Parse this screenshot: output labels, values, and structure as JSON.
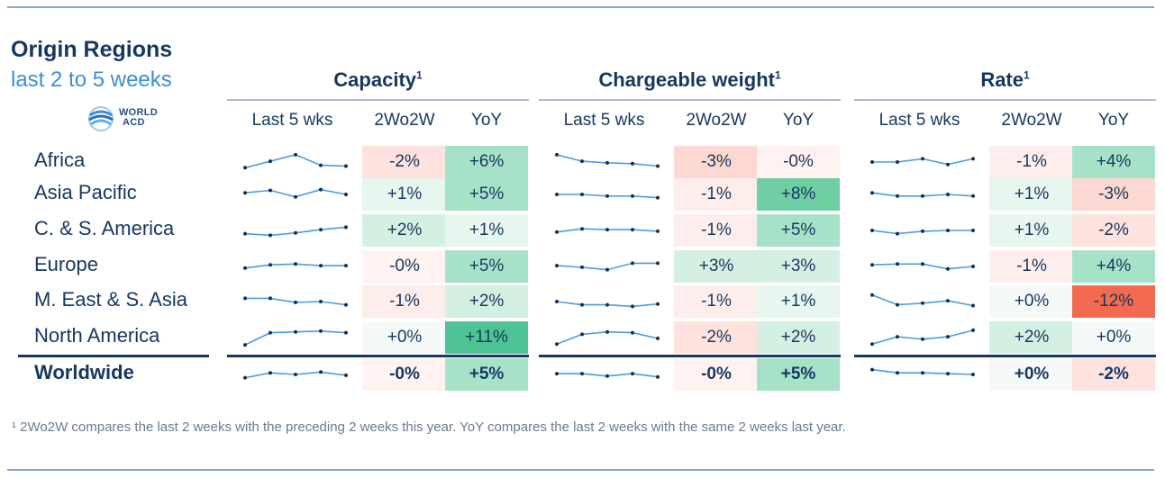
{
  "title": "Origin Regions",
  "subtitle": "last 2 to 5 weeks",
  "logo": {
    "line1": "WORLD",
    "line2": "ACD"
  },
  "footnote": "¹ 2Wo2W compares the last 2 weeks with the preceding 2 weeks this year. YoY compares the last 2 weeks with the same 2 weeks last year.",
  "chart_data": {
    "type": "table",
    "groups": [
      {
        "name": "Capacity",
        "sup": "1"
      },
      {
        "name": "Chargeable weight",
        "sup": "1"
      },
      {
        "name": "Rate",
        "sup": "1"
      }
    ],
    "columns": [
      "Last 5 wks",
      "2Wo2W",
      "YoY"
    ],
    "rows": [
      {
        "region": "Africa",
        "values": [
          [
            "-2%",
            "+6%"
          ],
          [
            "-3%",
            "-0%"
          ],
          [
            "-1%",
            "+4%"
          ]
        ],
        "spark": [
          [
            0.15,
            0.55,
            0.95,
            0.3,
            0.25
          ],
          [
            0.95,
            0.55,
            0.45,
            0.4,
            0.25
          ],
          [
            0.5,
            0.5,
            0.7,
            0.35,
            0.7
          ]
        ]
      },
      {
        "region": "Asia Pacific",
        "values": [
          [
            "+1%",
            "+5%"
          ],
          [
            "-1%",
            "+8%"
          ],
          [
            "+1%",
            "-3%"
          ]
        ],
        "spark": [
          [
            0.6,
            0.75,
            0.35,
            0.8,
            0.5
          ],
          [
            0.5,
            0.5,
            0.4,
            0.4,
            0.3
          ],
          [
            0.6,
            0.4,
            0.4,
            0.5,
            0.4
          ]
        ]
      },
      {
        "region": "C. & S. America",
        "values": [
          [
            "+2%",
            "+1%"
          ],
          [
            "-1%",
            "+5%"
          ],
          [
            "+1%",
            "-2%"
          ]
        ],
        "spark": [
          [
            0.3,
            0.2,
            0.35,
            0.55,
            0.7
          ],
          [
            0.4,
            0.6,
            0.55,
            0.55,
            0.45
          ],
          [
            0.5,
            0.3,
            0.45,
            0.5,
            0.5
          ]
        ]
      },
      {
        "region": "Europe",
        "values": [
          [
            "-0%",
            "+5%"
          ],
          [
            "+3%",
            "+3%"
          ],
          [
            "-1%",
            "+4%"
          ]
        ],
        "spark": [
          [
            0.4,
            0.6,
            0.65,
            0.55,
            0.55
          ],
          [
            0.55,
            0.45,
            0.3,
            0.7,
            0.7
          ],
          [
            0.6,
            0.65,
            0.65,
            0.35,
            0.5
          ]
        ]
      },
      {
        "region": "M. East & S. Asia",
        "values": [
          [
            "-1%",
            "+2%"
          ],
          [
            "-1%",
            "+1%"
          ],
          [
            "+0%",
            "-12%"
          ]
        ],
        "spark": [
          [
            0.7,
            0.7,
            0.45,
            0.5,
            0.3
          ],
          [
            0.5,
            0.3,
            0.3,
            0.2,
            0.35
          ],
          [
            0.9,
            0.3,
            0.4,
            0.55,
            0.25
          ]
        ]
      },
      {
        "region": "North America",
        "values": [
          [
            "+0%",
            "+11%"
          ],
          [
            "-2%",
            "+2%"
          ],
          [
            "+2%",
            "+0%"
          ]
        ],
        "spark": [
          [
            0.05,
            0.8,
            0.85,
            0.9,
            0.8
          ],
          [
            0.1,
            0.7,
            0.85,
            0.8,
            0.45
          ],
          [
            0.1,
            0.55,
            0.4,
            0.55,
            0.95
          ]
        ]
      },
      {
        "region": "Worldwide",
        "values": [
          [
            "-0%",
            "+5%"
          ],
          [
            "-0%",
            "+5%"
          ],
          [
            "+0%",
            "-2%"
          ]
        ],
        "spark": [
          [
            0.3,
            0.6,
            0.5,
            0.65,
            0.45
          ],
          [
            0.55,
            0.55,
            0.4,
            0.55,
            0.35
          ],
          [
            0.8,
            0.6,
            0.6,
            0.55,
            0.5
          ]
        ]
      }
    ]
  }
}
